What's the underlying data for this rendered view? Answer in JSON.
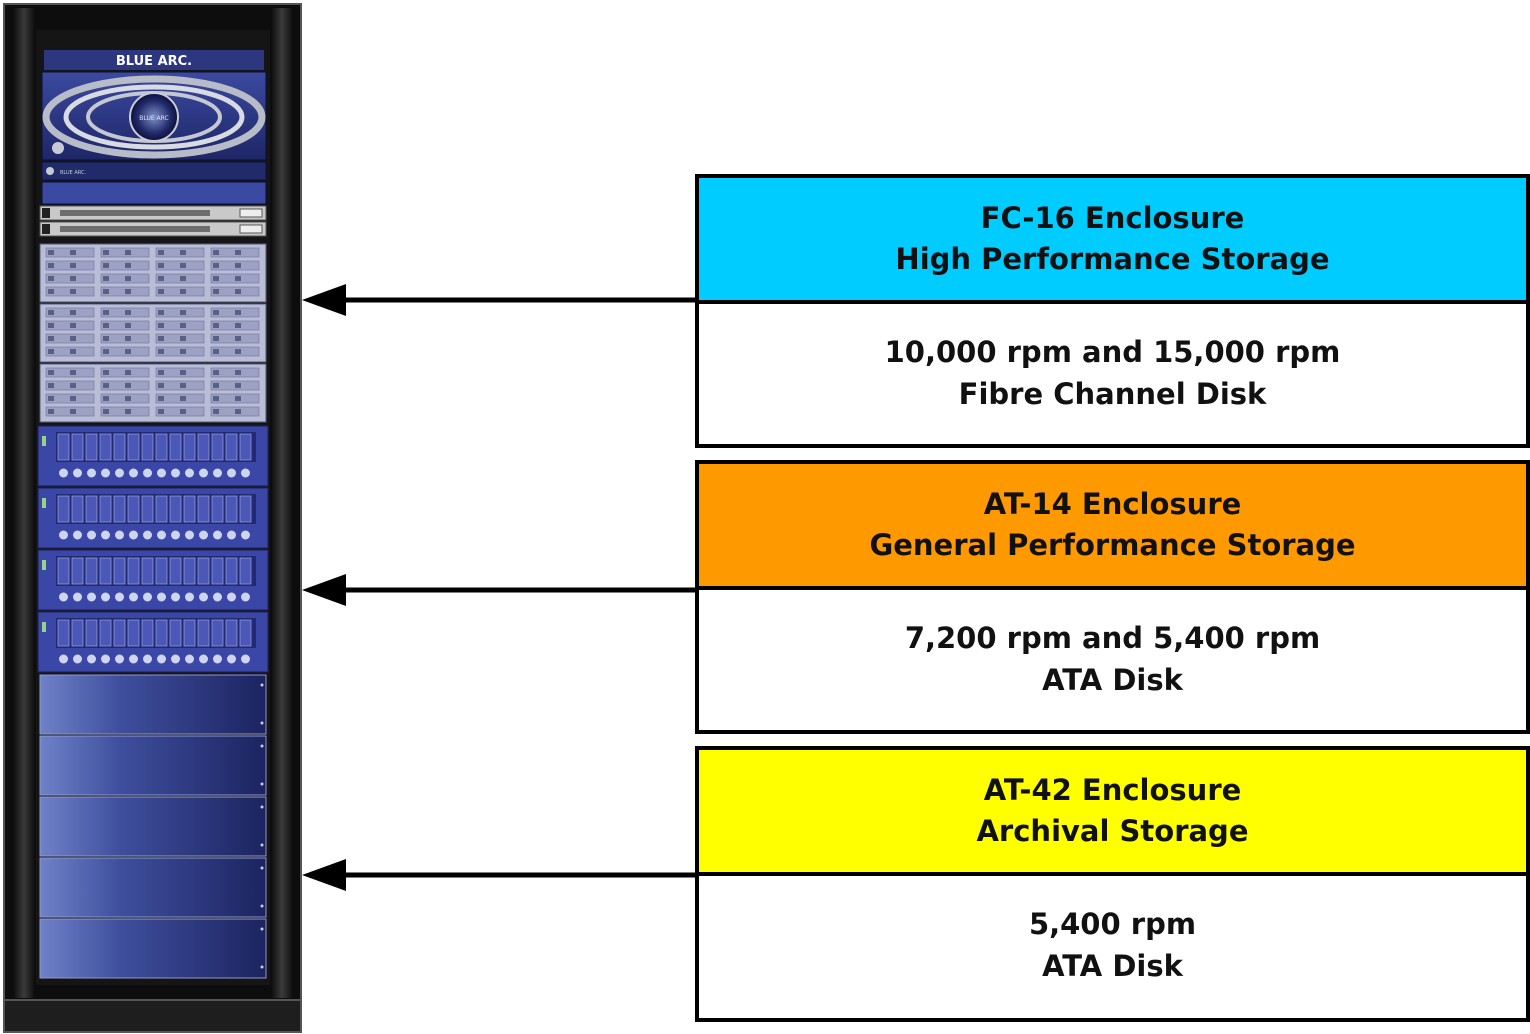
{
  "rack": {
    "brand": "BLUE ARC.",
    "nameplate": "BLUE ARC.",
    "bezel_badge": "BLUE ARC"
  },
  "enclosures": [
    {
      "title_line1": "FC-16 Enclosure",
      "title_line2": "High Performance Storage",
      "desc_line1": "10,000 rpm and 15,000 rpm",
      "desc_line2": "Fibre Channel Disk",
      "color": "#00ccff"
    },
    {
      "title_line1": "AT-14 Enclosure",
      "title_line2": "General Performance Storage",
      "desc_line1": "7,200 rpm and 5,400 rpm",
      "desc_line2": "ATA Disk",
      "color": "#ff9900"
    },
    {
      "title_line1": "AT-42 Enclosure",
      "title_line2": "Archival Storage",
      "desc_line1": "5,400 rpm",
      "desc_line2": "ATA Disk",
      "color": "#ffff00"
    }
  ]
}
